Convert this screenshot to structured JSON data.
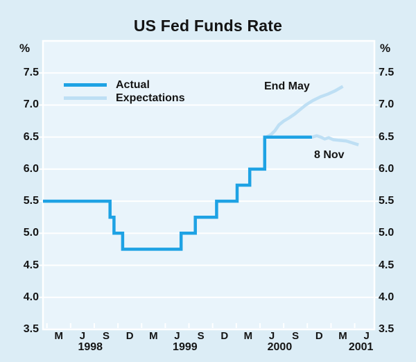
{
  "title": "US Fed Funds Rate",
  "y_axis": {
    "unit": "%",
    "ticks": [
      {
        "label": "7.5",
        "value": 7.5
      },
      {
        "label": "7.0",
        "value": 7.0
      },
      {
        "label": "6.5",
        "value": 6.5
      },
      {
        "label": "6.0",
        "value": 6.0
      },
      {
        "label": "5.5",
        "value": 5.5
      },
      {
        "label": "5.0",
        "value": 5.0
      },
      {
        "label": "4.5",
        "value": 4.5
      },
      {
        "label": "4.0",
        "value": 4.0
      },
      {
        "label": "3.5",
        "value": 3.5
      }
    ]
  },
  "x_axis": {
    "month_labels": [
      {
        "label": "M",
        "m": 2
      },
      {
        "label": "J",
        "m": 5
      },
      {
        "label": "S",
        "m": 8
      },
      {
        "label": "D",
        "m": 11
      },
      {
        "label": "M",
        "m": 14
      },
      {
        "label": "J",
        "m": 17
      },
      {
        "label": "S",
        "m": 20
      },
      {
        "label": "D",
        "m": 23
      },
      {
        "label": "M",
        "m": 26
      },
      {
        "label": "J",
        "m": 29
      },
      {
        "label": "S",
        "m": 32
      },
      {
        "label": "D",
        "m": 35
      },
      {
        "label": "M",
        "m": 38
      },
      {
        "label": "J",
        "m": 41
      }
    ],
    "year_labels": [
      {
        "label": "1998",
        "m": 6
      },
      {
        "label": "1999",
        "m": 18
      },
      {
        "label": "2000",
        "m": 30
      },
      {
        "label": "2001",
        "m": 40.3
      }
    ]
  },
  "legend": {
    "items": [
      {
        "label": "Actual",
        "color_key": "actual"
      },
      {
        "label": "Expectations",
        "color_key": "expectations"
      }
    ]
  },
  "annotations": [
    {
      "label": "End May"
    },
    {
      "label": "8 Nov"
    }
  ],
  "colors": {
    "actual": "#1EA2E4",
    "expectations": "#BEDFF4",
    "background": "#DCEDF6",
    "plot_background": "#E9F4FB",
    "grid": "#FFFFFF",
    "text": "#141414"
  },
  "chart_data": {
    "type": "line",
    "title": "US Fed Funds Rate",
    "ylabel": "%",
    "ylim": [
      3.5,
      8.0
    ],
    "x_domain_months": [
      "Jan 1998",
      "Jul 2001"
    ],
    "x_unit": "months since Jan 1998",
    "grid": true,
    "legend_position": "top-left",
    "series": [
      {
        "name": "Actual",
        "color_key": "actual",
        "z": 2,
        "points": [
          [
            0,
            5.5
          ],
          [
            8.5,
            5.5
          ],
          [
            8.5,
            5.25
          ],
          [
            9.0,
            5.25
          ],
          [
            9.0,
            5.0
          ],
          [
            10.1,
            5.0
          ],
          [
            10.1,
            4.75
          ],
          [
            17.5,
            4.75
          ],
          [
            17.5,
            5.0
          ],
          [
            19.3,
            5.0
          ],
          [
            19.3,
            5.25
          ],
          [
            22.0,
            5.25
          ],
          [
            22.0,
            5.5
          ],
          [
            24.6,
            5.5
          ],
          [
            24.6,
            5.75
          ],
          [
            26.2,
            5.75
          ],
          [
            26.2,
            6.0
          ],
          [
            28.1,
            6.0
          ],
          [
            28.1,
            6.5
          ],
          [
            34.1,
            6.5
          ]
        ]
      },
      {
        "name": "Expectations (End May)",
        "color_key": "expectations",
        "z": 1,
        "points": [
          [
            28.3,
            6.5
          ],
          [
            28.9,
            6.54
          ],
          [
            29.4,
            6.6
          ],
          [
            29.9,
            6.69
          ],
          [
            30.5,
            6.75
          ],
          [
            31.2,
            6.8
          ],
          [
            31.9,
            6.86
          ],
          [
            32.6,
            6.93
          ],
          [
            33.3,
            7.0
          ],
          [
            34.2,
            7.07
          ],
          [
            35.2,
            7.13
          ],
          [
            36.1,
            7.17
          ],
          [
            37.0,
            7.22
          ],
          [
            38.0,
            7.29
          ]
        ]
      },
      {
        "name": "Expectations (8 Nov)",
        "color_key": "expectations",
        "z": 3,
        "points": [
          [
            34.1,
            6.5
          ],
          [
            34.7,
            6.52
          ],
          [
            35.2,
            6.5
          ],
          [
            35.7,
            6.47
          ],
          [
            36.2,
            6.49
          ],
          [
            36.8,
            6.46
          ],
          [
            37.5,
            6.45
          ],
          [
            38.4,
            6.44
          ],
          [
            39.2,
            6.41
          ],
          [
            40.0,
            6.38
          ]
        ]
      }
    ]
  }
}
